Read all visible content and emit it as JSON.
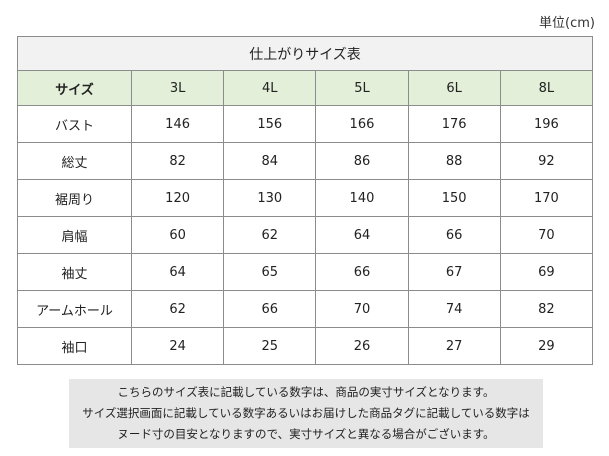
{
  "unit_label": "単位(cm)",
  "table": {
    "title": "仕上がりサイズ表",
    "header_label": "サイズ",
    "sizes": [
      "3L",
      "4L",
      "5L",
      "6L",
      "8L"
    ],
    "rows": [
      {
        "label": "バスト",
        "values": [
          "146",
          "156",
          "166",
          "176",
          "196"
        ]
      },
      {
        "label": "総丈",
        "values": [
          "82",
          "84",
          "86",
          "88",
          "92"
        ]
      },
      {
        "label": "裾周り",
        "values": [
          "120",
          "130",
          "140",
          "150",
          "170"
        ]
      },
      {
        "label": "肩幅",
        "values": [
          "60",
          "62",
          "64",
          "66",
          "70"
        ]
      },
      {
        "label": "袖丈",
        "values": [
          "64",
          "65",
          "66",
          "67",
          "69"
        ]
      },
      {
        "label": "アームホール",
        "values": [
          "62",
          "66",
          "70",
          "74",
          "82"
        ]
      },
      {
        "label": "袖口",
        "values": [
          "24",
          "25",
          "26",
          "27",
          "29"
        ]
      }
    ]
  },
  "note": {
    "lines": [
      "こちらのサイズ表に記載している数字は、商品の実寸サイズとなります。",
      "サイズ選択画面に記載している数字あるいはお届けした商品タグに記載している数字は",
      "ヌード寸の目安となりますので、実寸サイズと異なる場合がございます。"
    ]
  }
}
